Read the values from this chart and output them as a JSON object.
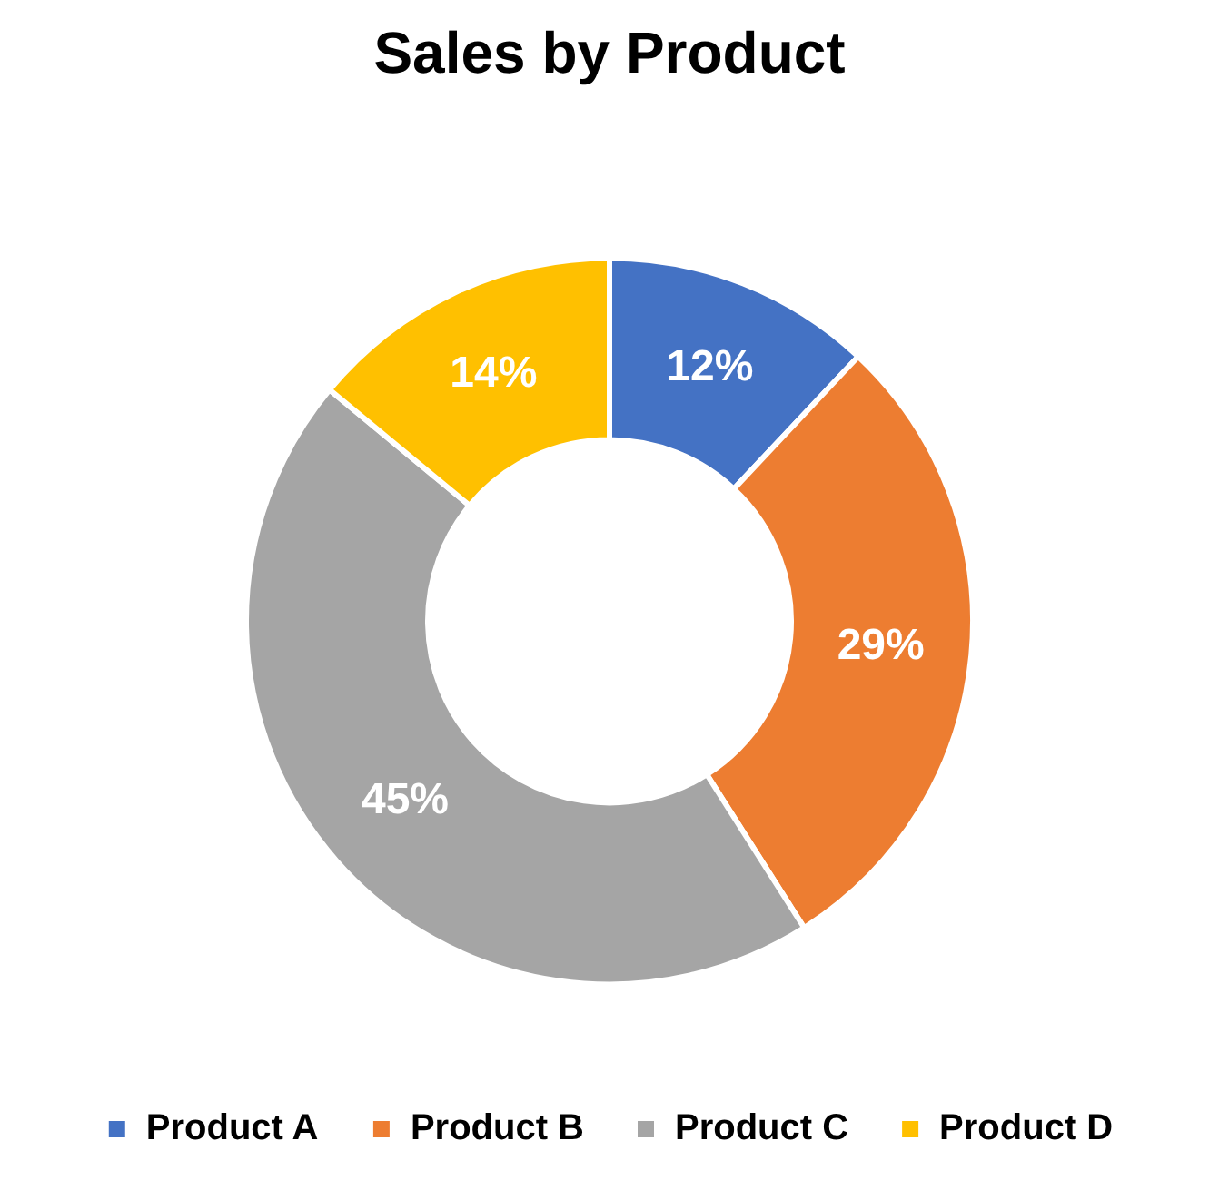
{
  "chart_data": {
    "type": "donut",
    "title": "Sales by Product",
    "categories": [
      "Product A",
      "Product B",
      "Product C",
      "Product D"
    ],
    "values": [
      12,
      29,
      45,
      14
    ],
    "value_labels": [
      "12%",
      "29%",
      "45%",
      "14%"
    ],
    "colors": [
      "#4472c4",
      "#ed7d31",
      "#a5a5a5",
      "#ffc000"
    ],
    "legend": "bottom"
  }
}
